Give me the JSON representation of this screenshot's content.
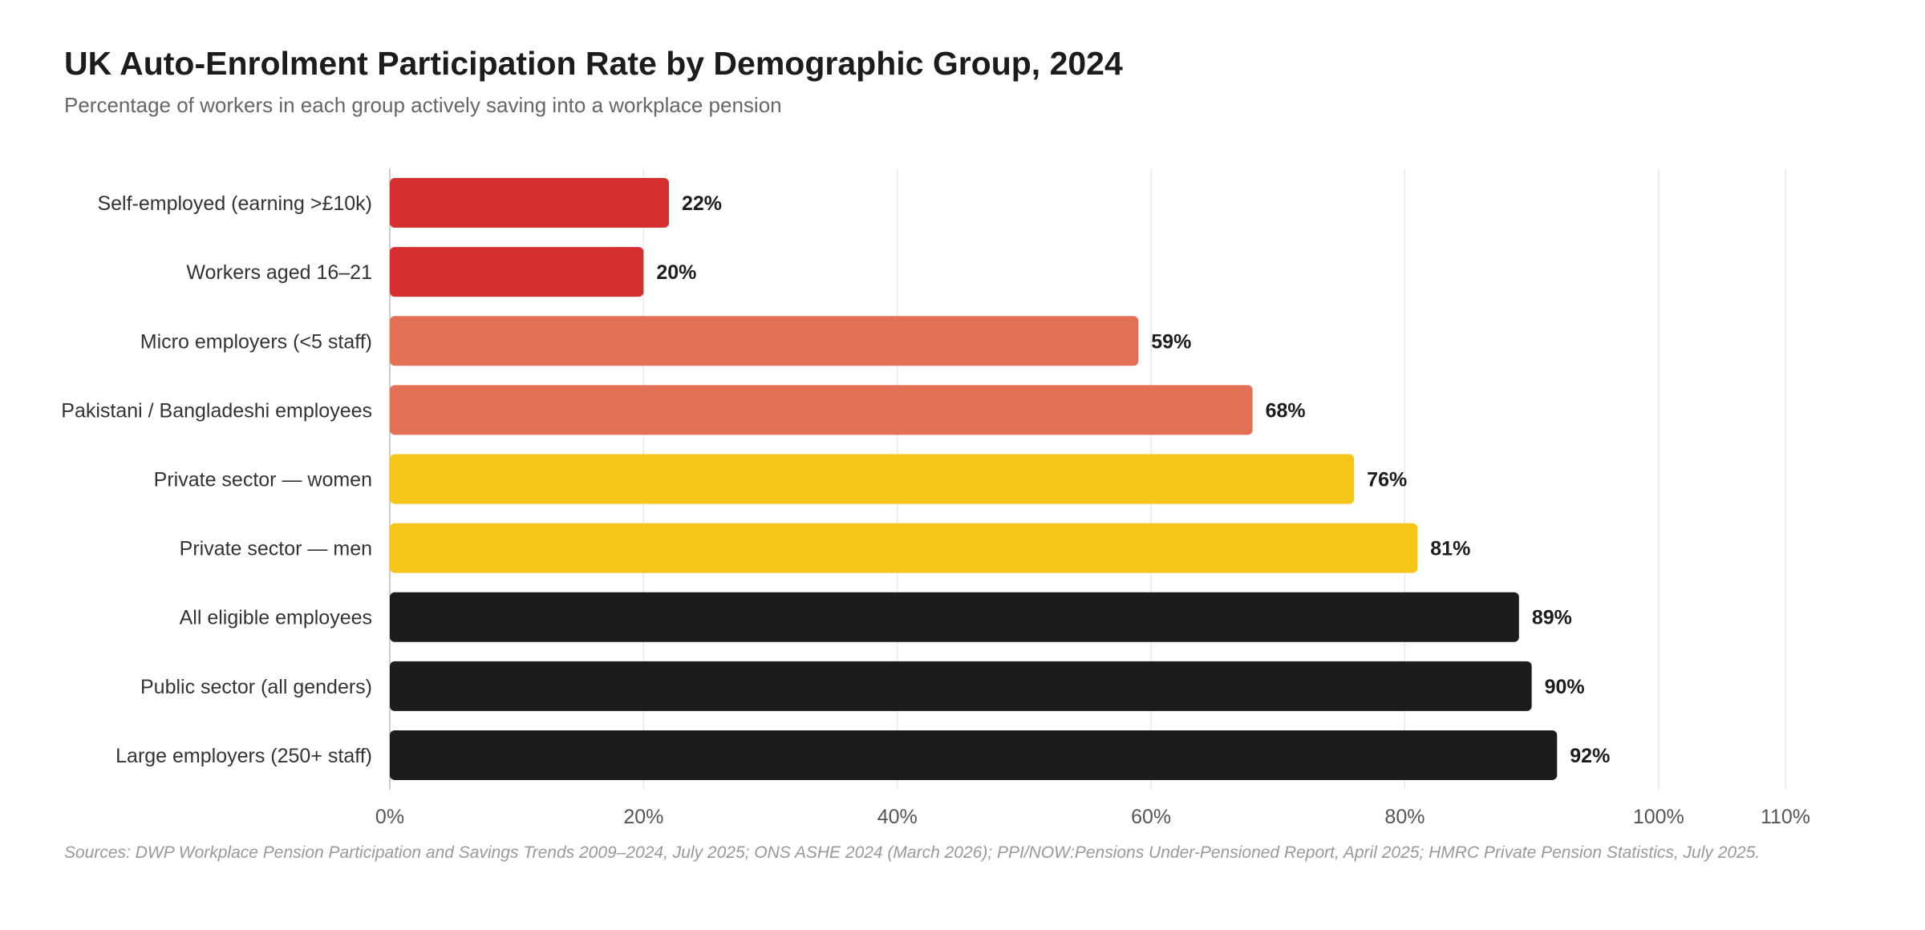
{
  "header": {
    "title": "UK Auto-Enrolment Participation Rate by Demographic Group, 2024",
    "subtitle": "Percentage of workers in each group actively saving into a workplace pension"
  },
  "footer": {
    "source": "Sources: DWP Workplace Pension Participation and Savings Trends 2009–2024, July 2025; ONS ASHE 2024 (March 2026); PPI/NOW:Pensions Under-Pensioned Report, April 2025; HMRC Private Pension Statistics, July 2025."
  },
  "chart_data": {
    "type": "bar",
    "orientation": "horizontal",
    "title": "UK Auto-Enrolment Participation Rate by Demographic Group, 2024",
    "subtitle": "Percentage of workers in each group actively saving into a workplace pension",
    "xlabel": "",
    "ylabel": "",
    "xlim": [
      0,
      110
    ],
    "x_ticks": [
      0,
      20,
      40,
      60,
      80,
      100,
      110
    ],
    "x_tick_labels": [
      "0%",
      "20%",
      "40%",
      "60%",
      "80%",
      "100%",
      "110%"
    ],
    "grid": "vertical",
    "legend": "none",
    "categories": [
      "Self-employed (earning >£10k)",
      "Workers aged 16–21",
      "Micro employers (<5 staff)",
      "Pakistani / Bangladeshi employees",
      "Private sector — women",
      "Private sector — men",
      "All eligible employees",
      "Public sector (all genders)",
      "Large employers (250+ staff)"
    ],
    "values": [
      22,
      20,
      59,
      68,
      76,
      81,
      89,
      90,
      92
    ],
    "value_labels": [
      "22%",
      "20%",
      "59%",
      "68%",
      "76%",
      "81%",
      "89%",
      "90%",
      "92%"
    ],
    "bar_colors": [
      "#d62f2f",
      "#d62f2f",
      "#e27055",
      "#e27055",
      "#f5c518",
      "#f5c518",
      "#1c1c1c",
      "#1c1c1c",
      "#1c1c1c"
    ],
    "colors": {
      "grid": "#e8e8e8",
      "axis": "#cccccc",
      "tick_label": "#555555",
      "category_label": "#333333",
      "value_label": "#1c1c1c"
    }
  }
}
